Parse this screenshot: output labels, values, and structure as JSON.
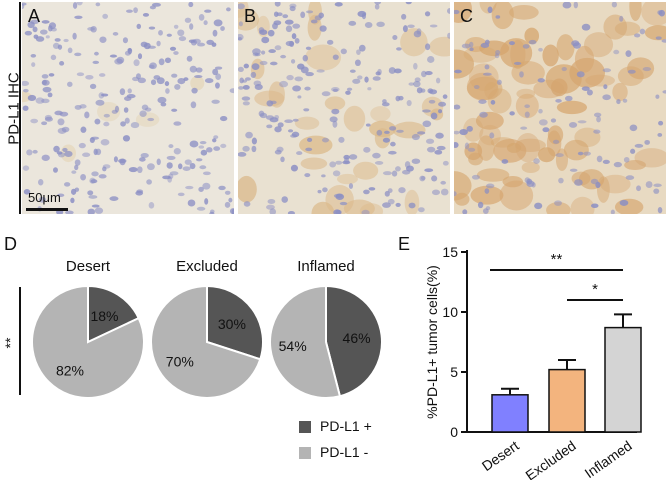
{
  "panels": {
    "a": "A",
    "b": "B",
    "c": "C",
    "d": "D",
    "e": "E"
  },
  "ihc_label": "PD-L1 IHC",
  "scale_bar_label": "50μm",
  "significance_d": "**",
  "colors": {
    "pdl1_pos": "#555555",
    "pdl1_neg": "#b4b4b4",
    "bar_desert": "#8080ff",
    "bar_excluded": "#f3b47e",
    "bar_inflamed": "#d4d4d4"
  },
  "chart_data": [
    {
      "type": "pie",
      "panel": "D",
      "legend": [
        "PD-L1 +",
        "PD-L1 -"
      ],
      "pies": [
        {
          "title": "Desert",
          "values": [
            18,
            82
          ],
          "labels": [
            "18%",
            "82%"
          ]
        },
        {
          "title": "Excluded",
          "values": [
            30,
            70
          ],
          "labels": [
            "30%",
            "70%"
          ]
        },
        {
          "title": "Inflamed",
          "values": [
            46,
            54
          ],
          "labels": [
            "46%",
            "54%"
          ]
        }
      ]
    },
    {
      "type": "bar",
      "panel": "E",
      "categories": [
        "Desert",
        "Excluded",
        "Inflamed"
      ],
      "values": [
        3.1,
        5.2,
        8.7
      ],
      "errors": [
        0.5,
        0.8,
        1.1
      ],
      "ylabel": "%PD-L1+ tumor cells(%)",
      "ylim": [
        0,
        15
      ],
      "yticks": [
        "0",
        "5",
        "10",
        "15"
      ],
      "significance": [
        {
          "from": "Desert",
          "to": "Inflamed",
          "label": "**"
        },
        {
          "from": "Excluded",
          "to": "Inflamed",
          "label": "*"
        }
      ]
    }
  ]
}
